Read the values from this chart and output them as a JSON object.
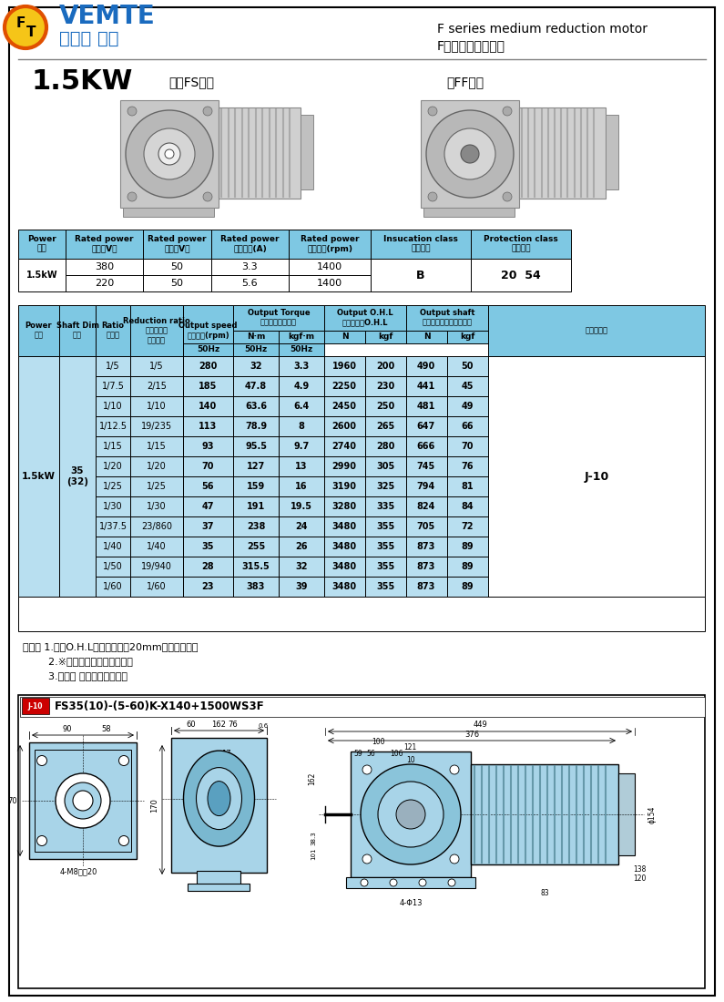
{
  "bg_color": "#ffffff",
  "header": {
    "brand_en": "VEMTE",
    "brand_cn": "减速机 电机",
    "series_en": "F series medium reduction motor",
    "series_cn": "F系列中型减速电机",
    "power": "1.5KW",
    "hollow_label": "中空FS系列",
    "solid_label": "中FF系列"
  },
  "upper_table": {
    "headers": [
      "Power\n功率",
      "Rated power\n電壓（V）",
      "Rated power\n頻率（V）",
      "Rated power\n額定電流(A)",
      "Rated power\n額定轉速(rpm)",
      "Insucation class\n絕緣等級",
      "Protection class\n防護等級"
    ],
    "row1": [
      "1.5kW",
      "380",
      "50",
      "3.3",
      "1400",
      "B",
      "20  54"
    ],
    "row2": [
      "",
      "220",
      "50",
      "5.6",
      "1400",
      "",
      ""
    ]
  },
  "rows": [
    [
      "1/5",
      "1/5",
      "280",
      "32",
      "3.3",
      "1960",
      "200",
      "490",
      "50"
    ],
    [
      "1/7.5",
      "2/15",
      "185",
      "47.8",
      "4.9",
      "2250",
      "230",
      "441",
      "45"
    ],
    [
      "1/10",
      "1/10",
      "140",
      "63.6",
      "6.4",
      "2450",
      "250",
      "481",
      "49"
    ],
    [
      "1/12.5",
      "19/235",
      "113",
      "78.9",
      "8",
      "2600",
      "265",
      "647",
      "66"
    ],
    [
      "1/15",
      "1/15",
      "93",
      "95.5",
      "9.7",
      "2740",
      "280",
      "666",
      "70"
    ],
    [
      "1/20",
      "1/20",
      "70",
      "127",
      "13",
      "2990",
      "305",
      "745",
      "76"
    ],
    [
      "1/25",
      "1/25",
      "56",
      "159",
      "16",
      "3190",
      "325",
      "794",
      "81"
    ],
    [
      "1/30",
      "1/30",
      "47",
      "191",
      "19.5",
      "3280",
      "335",
      "824",
      "84"
    ],
    [
      "1/37.5",
      "23/860",
      "37",
      "238",
      "24",
      "3480",
      "355",
      "705",
      "72"
    ],
    [
      "1/40",
      "1/40",
      "35",
      "255",
      "26",
      "3480",
      "355",
      "873",
      "89"
    ],
    [
      "1/50",
      "19/940",
      "28",
      "315.5",
      "32",
      "3480",
      "355",
      "873",
      "89"
    ],
    [
      "1/60",
      "1/60",
      "23",
      "383",
      "39",
      "3480",
      "355",
      "873",
      "89"
    ]
  ],
  "notes": [
    "（注） 1.富証O.H.L為輸出軸端面20mm位置的數値。",
    "        2.※標記為轉矩力變限模型。",
    "        3.括號（ ）為實心軸軸徑。"
  ],
  "drawing_label": "FS35(10)-(5-60)K-X140+1500WS3F",
  "table_header_color": "#7ec8e3",
  "table_row_color": "#b8dff0",
  "border_color": "#000000"
}
